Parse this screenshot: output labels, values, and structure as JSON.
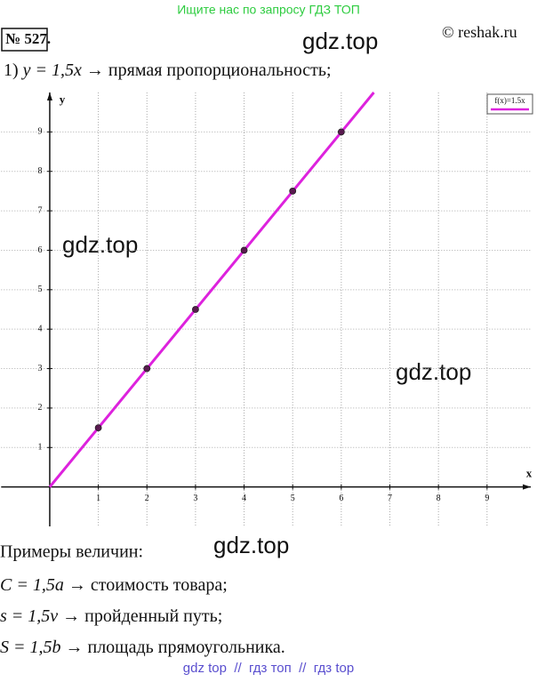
{
  "header": {
    "banner": "Ищите нас по запросу ГДЗ ТОП",
    "number": "№ 527.",
    "copyright": "© reshak.ru"
  },
  "watermarks": [
    "gdz.top",
    "gdz.top",
    "gdz.top",
    "gdz.top"
  ],
  "problem": {
    "item": "1)",
    "formula": "y = 1,5x",
    "text": "→ прямая пропорциональность;"
  },
  "chart_data": {
    "type": "line",
    "x_label": "x",
    "y_label": "y",
    "xlim": [
      -1,
      9.9
    ],
    "ylim": [
      -1,
      10
    ],
    "xticks": [
      1,
      2,
      3,
      4,
      5,
      6,
      7,
      8,
      9
    ],
    "yticks": [
      1,
      2,
      3,
      4,
      5,
      6,
      7,
      8,
      9
    ],
    "grid": true,
    "legend": "upper right",
    "series": [
      {
        "name": "f(x)=1.5x",
        "color": "#dd22dd",
        "x": [
          0,
          6.67
        ],
        "values": [
          0,
          10
        ]
      },
      {
        "color": "#5a1a50",
        "marker": true,
        "x": [
          1,
          2,
          3,
          4,
          5,
          6
        ],
        "values": [
          1.5,
          3,
          4.5,
          6,
          7.5,
          9
        ]
      }
    ]
  },
  "examples": {
    "title": "Примеры величин:",
    "items": [
      {
        "formula": "C = 1,5a",
        "text": "→ стоимость товара;"
      },
      {
        "formula": "s = 1,5v",
        "text": "→ пройденный путь;"
      },
      {
        "formula": "S = 1,5b",
        "text": "→ площадь прямоугольника."
      }
    ]
  },
  "footer": "gdz top  //  гдз топ  //  гдз top"
}
